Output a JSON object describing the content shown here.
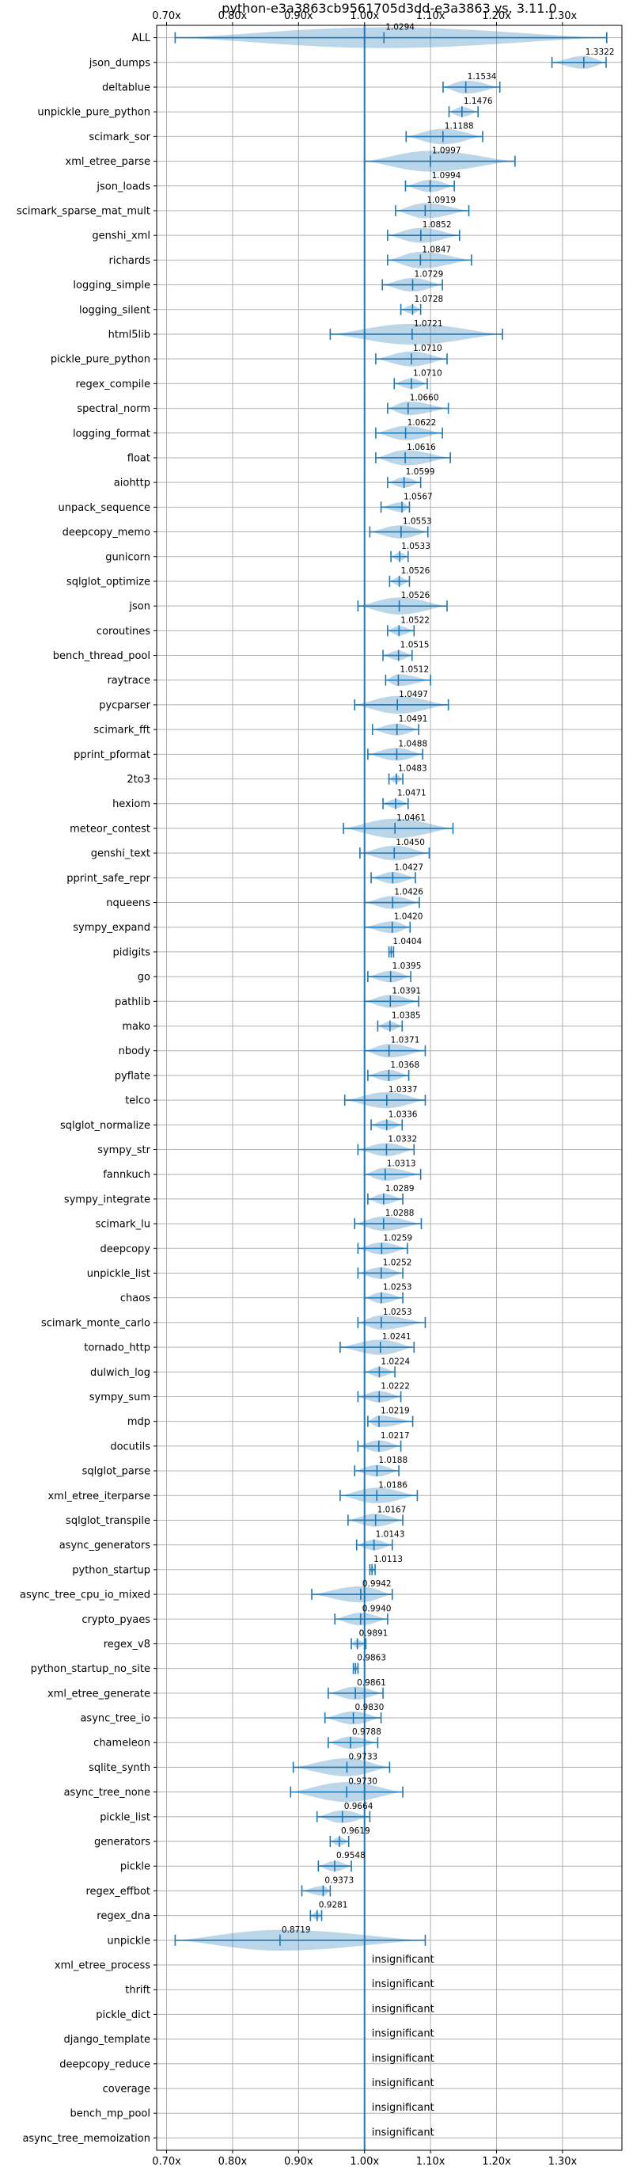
{
  "chart_data": {
    "type": "violin",
    "title": "python-e3a3863cb9561705d3dd-e3a3863 vs. 3.11.0",
    "xlabel": "",
    "ylabel": "",
    "xlim": [
      0.685,
      1.39
    ],
    "xticks": [
      0.7,
      0.8,
      0.9,
      1.0,
      1.1,
      1.2,
      1.3
    ],
    "xtick_labels": [
      "0.70x",
      "0.80x",
      "0.90x",
      "1.00x",
      "1.10x",
      "1.20x",
      "1.30x"
    ],
    "grid": true,
    "reference_line": 1.0,
    "colors": {
      "violin": "#1f77b4",
      "violin_alpha": 0.3,
      "line": "#1f77b4",
      "grid": "#b0b0b0"
    },
    "benchmarks": [
      {
        "name": "ALL",
        "mean": 1.0294,
        "min": 0.713,
        "max": 1.367,
        "label": "1.0294"
      },
      {
        "name": "json_dumps",
        "mean": 1.3322,
        "min": 1.284,
        "max": 1.366,
        "label": "1.3322"
      },
      {
        "name": "deltablue",
        "mean": 1.1534,
        "min": 1.119,
        "max": 1.205,
        "label": "1.1534"
      },
      {
        "name": "unpickle_pure_python",
        "mean": 1.1476,
        "min": 1.128,
        "max": 1.172,
        "label": "1.1476"
      },
      {
        "name": "scimark_sor",
        "mean": 1.1188,
        "min": 1.063,
        "max": 1.179,
        "label": "1.1188"
      },
      {
        "name": "xml_etree_parse",
        "mean": 1.0997,
        "min": 1.0,
        "max": 1.228,
        "label": "1.0997"
      },
      {
        "name": "json_loads",
        "mean": 1.0994,
        "min": 1.062,
        "max": 1.136,
        "label": "1.0994"
      },
      {
        "name": "scimark_sparse_mat_mult",
        "mean": 1.0919,
        "min": 1.047,
        "max": 1.158,
        "label": "1.0919"
      },
      {
        "name": "genshi_xml",
        "mean": 1.0852,
        "min": 1.035,
        "max": 1.144,
        "label": "1.0852"
      },
      {
        "name": "richards",
        "mean": 1.0847,
        "min": 1.035,
        "max": 1.162,
        "label": "1.0847"
      },
      {
        "name": "logging_simple",
        "mean": 1.0729,
        "min": 1.027,
        "max": 1.118,
        "label": "1.0729"
      },
      {
        "name": "logging_silent",
        "mean": 1.0728,
        "min": 1.055,
        "max": 1.085,
        "label": "1.0728"
      },
      {
        "name": "html5lib",
        "mean": 1.0721,
        "min": 0.948,
        "max": 1.209,
        "label": "1.0721"
      },
      {
        "name": "pickle_pure_python",
        "mean": 1.071,
        "min": 1.017,
        "max": 1.125,
        "label": "1.0710"
      },
      {
        "name": "regex_compile",
        "mean": 1.071,
        "min": 1.045,
        "max": 1.095,
        "label": "1.0710"
      },
      {
        "name": "spectral_norm",
        "mean": 1.066,
        "min": 1.035,
        "max": 1.127,
        "label": "1.0660"
      },
      {
        "name": "logging_format",
        "mean": 1.0622,
        "min": 1.017,
        "max": 1.118,
        "label": "1.0622"
      },
      {
        "name": "float",
        "mean": 1.0616,
        "min": 1.017,
        "max": 1.13,
        "label": "1.0616"
      },
      {
        "name": "aiohttp",
        "mean": 1.0599,
        "min": 1.035,
        "max": 1.085,
        "label": "1.0599"
      },
      {
        "name": "unpack_sequence",
        "mean": 1.0567,
        "min": 1.025,
        "max": 1.068,
        "label": "1.0567"
      },
      {
        "name": "deepcopy_memo",
        "mean": 1.0553,
        "min": 1.008,
        "max": 1.096,
        "label": "1.0553"
      },
      {
        "name": "gunicorn",
        "mean": 1.0533,
        "min": 1.04,
        "max": 1.066,
        "label": "1.0533"
      },
      {
        "name": "sqlglot_optimize",
        "mean": 1.0526,
        "min": 1.038,
        "max": 1.068,
        "label": "1.0526"
      },
      {
        "name": "json",
        "mean": 1.0526,
        "min": 0.99,
        "max": 1.125,
        "label": "1.0526"
      },
      {
        "name": "coroutines",
        "mean": 1.0522,
        "min": 1.035,
        "max": 1.075,
        "label": "1.0522"
      },
      {
        "name": "bench_thread_pool",
        "mean": 1.0515,
        "min": 1.028,
        "max": 1.072,
        "label": "1.0515"
      },
      {
        "name": "raytrace",
        "mean": 1.0512,
        "min": 1.032,
        "max": 1.1,
        "label": "1.0512"
      },
      {
        "name": "pycparser",
        "mean": 1.0497,
        "min": 0.985,
        "max": 1.127,
        "label": "1.0497"
      },
      {
        "name": "scimark_fft",
        "mean": 1.0491,
        "min": 1.012,
        "max": 1.082,
        "label": "1.0491"
      },
      {
        "name": "pprint_pformat",
        "mean": 1.0488,
        "min": 1.005,
        "max": 1.088,
        "label": "1.0488"
      },
      {
        "name": "2to3",
        "mean": 1.0483,
        "min": 1.037,
        "max": 1.058,
        "label": "1.0483"
      },
      {
        "name": "hexiom",
        "mean": 1.0471,
        "min": 1.028,
        "max": 1.066,
        "label": "1.0471"
      },
      {
        "name": "meteor_contest",
        "mean": 1.0461,
        "min": 0.968,
        "max": 1.134,
        "label": "1.0461"
      },
      {
        "name": "genshi_text",
        "mean": 1.045,
        "min": 0.993,
        "max": 1.098,
        "label": "1.0450"
      },
      {
        "name": "pprint_safe_repr",
        "mean": 1.0427,
        "min": 1.01,
        "max": 1.077,
        "label": "1.0427"
      },
      {
        "name": "nqueens",
        "mean": 1.0426,
        "min": 1.0,
        "max": 1.083,
        "label": "1.0426"
      },
      {
        "name": "sympy_expand",
        "mean": 1.042,
        "min": 1.0,
        "max": 1.069,
        "label": "1.0420"
      },
      {
        "name": "pidigits",
        "mean": 1.0404,
        "min": 1.037,
        "max": 1.044,
        "label": "1.0404"
      },
      {
        "name": "go",
        "mean": 1.0395,
        "min": 1.005,
        "max": 1.07,
        "label": "1.0395"
      },
      {
        "name": "pathlib",
        "mean": 1.0391,
        "min": 1.0,
        "max": 1.082,
        "label": "1.0391"
      },
      {
        "name": "mako",
        "mean": 1.0385,
        "min": 1.02,
        "max": 1.057,
        "label": "1.0385"
      },
      {
        "name": "nbody",
        "mean": 1.0371,
        "min": 1.0,
        "max": 1.092,
        "label": "1.0371"
      },
      {
        "name": "pyflate",
        "mean": 1.0368,
        "min": 1.005,
        "max": 1.067,
        "label": "1.0368"
      },
      {
        "name": "telco",
        "mean": 1.0337,
        "min": 0.97,
        "max": 1.092,
        "label": "1.0337"
      },
      {
        "name": "sqlglot_normalize",
        "mean": 1.0336,
        "min": 1.01,
        "max": 1.057,
        "label": "1.0336"
      },
      {
        "name": "sympy_str",
        "mean": 1.0332,
        "min": 0.99,
        "max": 1.075,
        "label": "1.0332"
      },
      {
        "name": "fannkuch",
        "mean": 1.0313,
        "min": 1.0,
        "max": 1.085,
        "label": "1.0313"
      },
      {
        "name": "sympy_integrate",
        "mean": 1.0289,
        "min": 1.005,
        "max": 1.058,
        "label": "1.0289"
      },
      {
        "name": "scimark_lu",
        "mean": 1.0288,
        "min": 0.985,
        "max": 1.086,
        "label": "1.0288"
      },
      {
        "name": "deepcopy",
        "mean": 1.0259,
        "min": 0.99,
        "max": 1.065,
        "label": "1.0259"
      },
      {
        "name": "unpickle_list",
        "mean": 1.0252,
        "min": 0.99,
        "max": 1.058,
        "label": "1.0252"
      },
      {
        "name": "chaos",
        "mean": 1.0253,
        "min": 1.0,
        "max": 1.058,
        "label": "1.0253"
      },
      {
        "name": "scimark_monte_carlo",
        "mean": 1.0253,
        "min": 0.99,
        "max": 1.092,
        "label": "1.0253"
      },
      {
        "name": "tornado_http",
        "mean": 1.0241,
        "min": 0.963,
        "max": 1.075,
        "label": "1.0241"
      },
      {
        "name": "dulwich_log",
        "mean": 1.0224,
        "min": 1.0,
        "max": 1.046,
        "label": "1.0224"
      },
      {
        "name": "sympy_sum",
        "mean": 1.0222,
        "min": 0.99,
        "max": 1.055,
        "label": "1.0222"
      },
      {
        "name": "mdp",
        "mean": 1.0219,
        "min": 1.005,
        "max": 1.073,
        "label": "1.0219"
      },
      {
        "name": "docutils",
        "mean": 1.0217,
        "min": 0.99,
        "max": 1.055,
        "label": "1.0217"
      },
      {
        "name": "sqlglot_parse",
        "mean": 1.0188,
        "min": 0.985,
        "max": 1.052,
        "label": "1.0188"
      },
      {
        "name": "xml_etree_iterparse",
        "mean": 1.0186,
        "min": 0.963,
        "max": 1.08,
        "label": "1.0186"
      },
      {
        "name": "sqlglot_transpile",
        "mean": 1.0167,
        "min": 0.975,
        "max": 1.058,
        "label": "1.0167"
      },
      {
        "name": "async_generators",
        "mean": 1.0143,
        "min": 0.988,
        "max": 1.042,
        "label": "1.0143"
      },
      {
        "name": "python_startup",
        "mean": 1.0113,
        "min": 1.008,
        "max": 1.016,
        "label": "1.0113"
      },
      {
        "name": "async_tree_cpu_io_mixed",
        "mean": 0.9942,
        "min": 0.92,
        "max": 1.042,
        "label": "0.9942"
      },
      {
        "name": "crypto_pyaes",
        "mean": 0.994,
        "min": 0.955,
        "max": 1.035,
        "label": "0.9940"
      },
      {
        "name": "regex_v8",
        "mean": 0.9891,
        "min": 0.98,
        "max": 1.002,
        "label": "0.9891"
      },
      {
        "name": "python_startup_no_site",
        "mean": 0.9863,
        "min": 0.983,
        "max": 0.99,
        "label": "0.9863"
      },
      {
        "name": "xml_etree_generate",
        "mean": 0.9861,
        "min": 0.945,
        "max": 1.028,
        "label": "0.9861"
      },
      {
        "name": "async_tree_io",
        "mean": 0.983,
        "min": 0.94,
        "max": 1.025,
        "label": "0.9830"
      },
      {
        "name": "chameleon",
        "mean": 0.9788,
        "min": 0.945,
        "max": 1.02,
        "label": "0.9788"
      },
      {
        "name": "sqlite_synth",
        "mean": 0.9733,
        "min": 0.892,
        "max": 1.038,
        "label": "0.9733"
      },
      {
        "name": "async_tree_none",
        "mean": 0.973,
        "min": 0.888,
        "max": 1.058,
        "label": "0.9730"
      },
      {
        "name": "pickle_list",
        "mean": 0.9664,
        "min": 0.928,
        "max": 1.008,
        "label": "0.9664"
      },
      {
        "name": "generators",
        "mean": 0.9619,
        "min": 0.948,
        "max": 0.976,
        "label": "0.9619"
      },
      {
        "name": "pickle",
        "mean": 0.9548,
        "min": 0.93,
        "max": 0.98,
        "label": "0.9548"
      },
      {
        "name": "regex_effbot",
        "mean": 0.9373,
        "min": 0.905,
        "max": 0.948,
        "label": "0.9373"
      },
      {
        "name": "regex_dna",
        "mean": 0.9281,
        "min": 0.918,
        "max": 0.935,
        "label": "0.9281"
      },
      {
        "name": "unpickle",
        "mean": 0.8719,
        "min": 0.713,
        "max": 1.092,
        "label": "0.8719"
      }
    ],
    "insignificant": [
      "xml_etree_process",
      "thrift",
      "pickle_dict",
      "django_template",
      "deepcopy_reduce",
      "coverage",
      "bench_mp_pool",
      "async_tree_memoization"
    ],
    "insignificant_label": "insignificant"
  }
}
